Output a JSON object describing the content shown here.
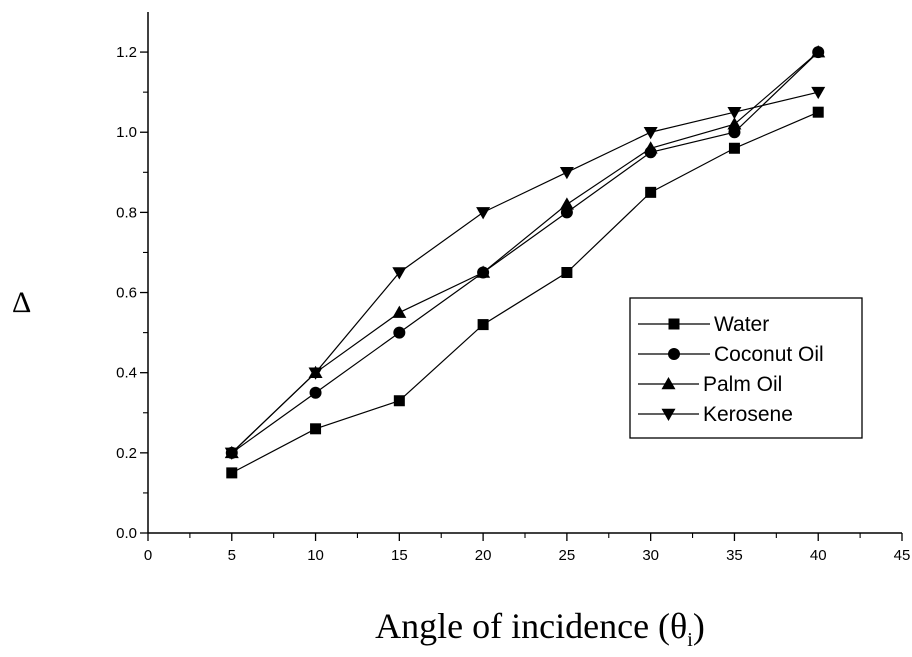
{
  "chart_data": {
    "type": "line",
    "title": "",
    "xlabel": "Angle of incidence (θ",
    "xlabel_subscript": "i",
    "xlabel_close": ")",
    "ylabel": "Δ",
    "xlim": [
      0,
      45
    ],
    "ylim": [
      0.0,
      1.3
    ],
    "x_ticks": [
      0,
      5,
      10,
      15,
      20,
      25,
      30,
      35,
      40,
      45
    ],
    "x_tick_labels": [
      "0",
      "5",
      "10",
      "15",
      "20",
      "25",
      "30",
      "35",
      "40",
      "45"
    ],
    "y_ticks": [
      0.0,
      0.2,
      0.4,
      0.6,
      0.8,
      1.0,
      1.2
    ],
    "y_tick_labels": [
      "0.0",
      "0.2",
      "0.4",
      "0.6",
      "0.8",
      "1.0",
      "1.2"
    ],
    "grid": false,
    "legend_position": "right",
    "x": [
      5,
      10,
      15,
      20,
      25,
      30,
      35,
      40
    ],
    "series": [
      {
        "name": "Water",
        "marker": "square",
        "values": [
          0.15,
          0.26,
          0.33,
          0.52,
          0.65,
          0.85,
          0.96,
          1.05
        ]
      },
      {
        "name": "Coconut Oil",
        "marker": "circle",
        "values": [
          0.2,
          0.35,
          0.5,
          0.65,
          0.8,
          0.95,
          1.0,
          1.2
        ]
      },
      {
        "name": "Palm Oil",
        "marker": "triangle-up",
        "values": [
          0.2,
          0.4,
          0.55,
          0.65,
          0.82,
          0.96,
          1.02,
          1.2
        ]
      },
      {
        "name": "Kerosene",
        "marker": "triangle-down",
        "values": [
          0.2,
          0.4,
          0.65,
          0.8,
          0.9,
          1.0,
          1.05,
          1.1
        ]
      }
    ]
  }
}
